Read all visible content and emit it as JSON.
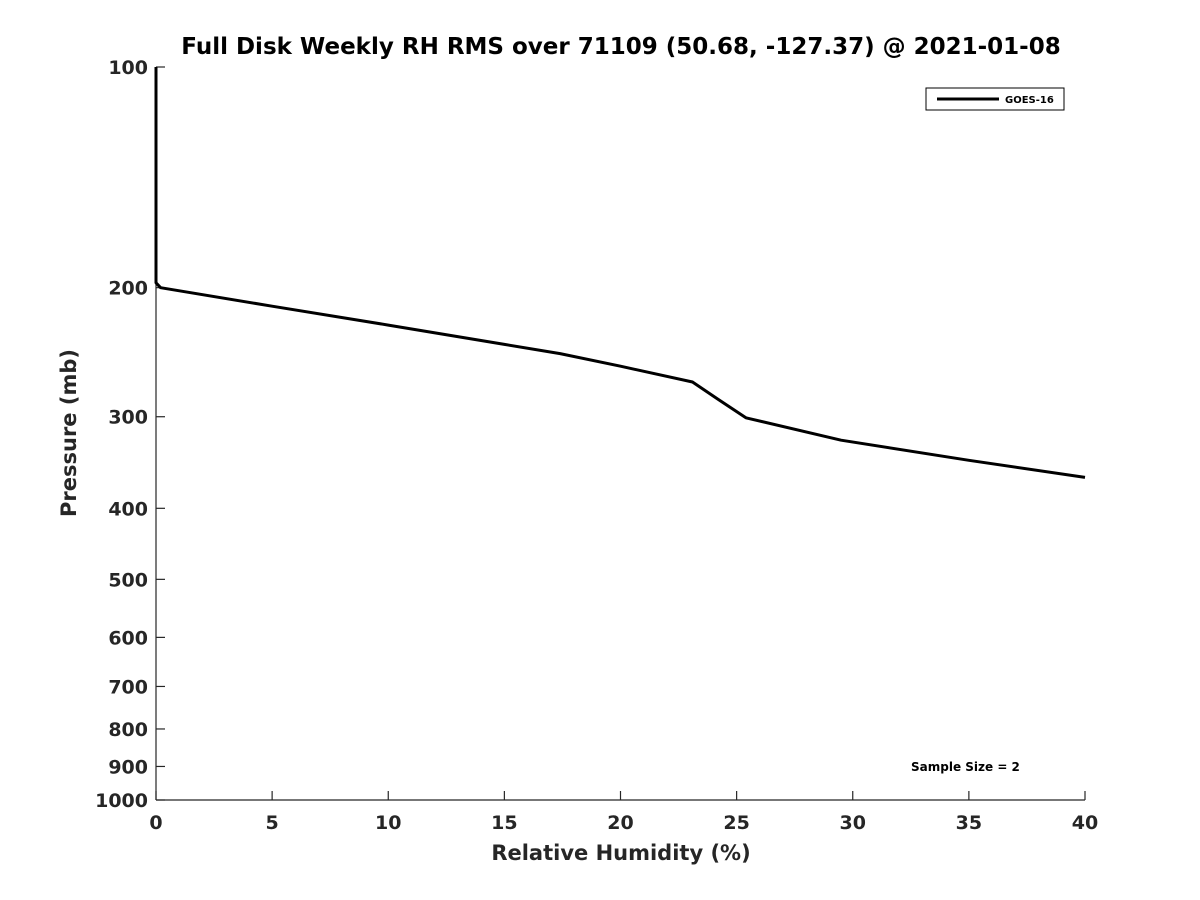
{
  "chart_data": {
    "type": "line",
    "title": "Full Disk Weekly RH RMS over 71109 (50.68, -127.37) @ 2021-01-08",
    "xlabel": "Relative Humidity (%)",
    "ylabel": "Pressure (mb)",
    "xlim": [
      0,
      40
    ],
    "ylim": [
      100,
      1000
    ],
    "y_scale": "log",
    "y_reversed": true,
    "x_ticks": [
      0,
      5,
      10,
      15,
      20,
      25,
      30,
      35,
      40
    ],
    "x_tick_labels": [
      "0",
      "5",
      "10",
      "15",
      "20",
      "25",
      "30",
      "35",
      "40"
    ],
    "y_ticks": [
      100,
      200,
      300,
      400,
      500,
      600,
      700,
      800,
      900,
      1000
    ],
    "y_tick_labels": [
      "100",
      "200",
      "300",
      "400",
      "500",
      "600",
      "700",
      "800",
      "900",
      "1000"
    ],
    "grid": false,
    "legend_position": "top-right",
    "series": [
      {
        "name": "GOES-16",
        "color": "#000000",
        "points": [
          [
            0.0,
            100
          ],
          [
            0.0,
            150
          ],
          [
            0.0,
            197
          ],
          [
            0.2,
            200
          ],
          [
            5.0,
            212
          ],
          [
            10.0,
            225
          ],
          [
            15.0,
            239
          ],
          [
            17.4,
            246
          ],
          [
            20.0,
            256
          ],
          [
            23.1,
            269
          ],
          [
            24.2,
            284
          ],
          [
            25.4,
            301
          ],
          [
            29.5,
            323
          ],
          [
            35.0,
            344
          ],
          [
            40.0,
            363
          ]
        ]
      }
    ],
    "annotations": [
      "Sample Size = 2"
    ]
  }
}
